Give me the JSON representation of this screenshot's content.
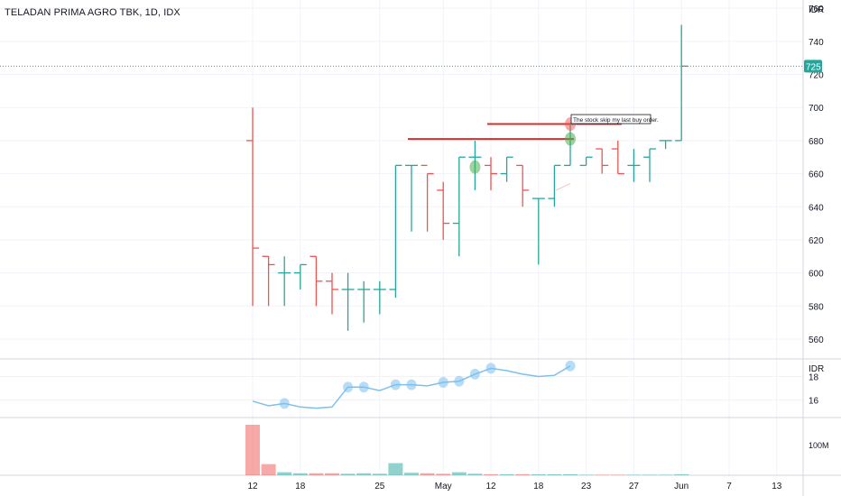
{
  "header": {
    "title": "TELADAN PRIMA AGRO TBK, 1D, IDX"
  },
  "colors": {
    "up": "#26a69a",
    "down": "#ef5350",
    "line": "#7cc0ef",
    "resistance": "#d32f2f",
    "grid": "#f0f3fa"
  },
  "chart_data": {
    "type": "ohlc",
    "currency": "IDR",
    "last_price": 725,
    "price_axis": {
      "ylim": [
        548,
        765
      ],
      "ticks": [
        560,
        580,
        600,
        620,
        640,
        660,
        680,
        700,
        720,
        740,
        760
      ]
    },
    "x_ticks": [
      {
        "label": "12",
        "i": 0
      },
      {
        "label": "18",
        "i": 3
      },
      {
        "label": "25",
        "i": 8
      },
      {
        "label": "May",
        "i": 12
      },
      {
        "label": "12",
        "i": 15
      },
      {
        "label": "18",
        "i": 18
      },
      {
        "label": "23",
        "i": 21
      },
      {
        "label": "27",
        "i": 24
      },
      {
        "label": "Jun",
        "i": 27
      },
      {
        "label": "7",
        "i": 30
      },
      {
        "label": "13",
        "i": 33
      }
    ],
    "bars": [
      {
        "o": 680,
        "h": 700,
        "l": 580,
        "c": 615,
        "v": 100
      },
      {
        "o": 610,
        "h": 610,
        "l": 580,
        "c": 605,
        "v": 22
      },
      {
        "o": 600,
        "h": 610,
        "l": 580,
        "c": 600,
        "v": 6
      },
      {
        "o": 600,
        "h": 605,
        "l": 590,
        "c": 605,
        "v": 4
      },
      {
        "o": 610,
        "h": 610,
        "l": 580,
        "c": 595,
        "v": 4
      },
      {
        "o": 595,
        "h": 600,
        "l": 575,
        "c": 590,
        "v": 4
      },
      {
        "o": 590,
        "h": 600,
        "l": 565,
        "c": 590,
        "v": 3
      },
      {
        "o": 590,
        "h": 595,
        "l": 570,
        "c": 590,
        "v": 4
      },
      {
        "o": 590,
        "h": 595,
        "l": 575,
        "c": 590,
        "v": 3
      },
      {
        "o": 590,
        "h": 665,
        "l": 585,
        "c": 665,
        "v": 24
      },
      {
        "o": 665,
        "h": 665,
        "l": 625,
        "c": 665,
        "v": 5
      },
      {
        "o": 665,
        "h": 660,
        "l": 625,
        "c": 660,
        "v": 4
      },
      {
        "o": 650,
        "h": 655,
        "l": 620,
        "c": 630,
        "v": 3
      },
      {
        "o": 630,
        "h": 670,
        "l": 610,
        "c": 670,
        "v": 6
      },
      {
        "o": 670,
        "h": 680,
        "l": 650,
        "c": 670,
        "v": 3
      },
      {
        "o": 665,
        "h": 670,
        "l": 650,
        "c": 660,
        "v": 2
      },
      {
        "o": 660,
        "h": 670,
        "l": 655,
        "c": 670,
        "v": 2
      },
      {
        "o": 665,
        "h": 665,
        "l": 640,
        "c": 650,
        "v": 2
      },
      {
        "o": 645,
        "h": 645,
        "l": 605,
        "c": 645,
        "v": 2
      },
      {
        "o": 645,
        "h": 665,
        "l": 640,
        "c": 665,
        "v": 2
      },
      {
        "o": 665,
        "h": 690,
        "l": 665,
        "c": 690,
        "v": 2
      },
      {
        "o": 665,
        "h": 670,
        "l": 665,
        "c": 670,
        "v": 1
      },
      {
        "o": 675,
        "h": 675,
        "l": 660,
        "c": 665,
        "v": 1
      },
      {
        "o": 675,
        "h": 680,
        "l": 660,
        "c": 660,
        "v": 1
      },
      {
        "o": 665,
        "h": 675,
        "l": 655,
        "c": 665,
        "v": 1
      },
      {
        "o": 670,
        "h": 675,
        "l": 655,
        "c": 675,
        "v": 1
      },
      {
        "o": 680,
        "h": 680,
        "l": 675,
        "c": 680,
        "v": 1
      },
      {
        "o": 680,
        "h": 750,
        "l": 680,
        "c": 725,
        "v": 2
      }
    ],
    "resistance_lines": [
      {
        "price": 681,
        "from_i": 10,
        "to_i": 20
      },
      {
        "price": 690,
        "from_i": 15,
        "to_i": 23
      }
    ],
    "markers": [
      {
        "i": 14,
        "price": 664,
        "color": "green"
      },
      {
        "i": 20,
        "price": 681,
        "color": "green"
      },
      {
        "i": 20,
        "price": 690,
        "color": "red"
      }
    ],
    "annotation": {
      "text": "The stock skip my last buy order.",
      "i": 20,
      "price": 693
    },
    "indicator": {
      "axis_label": "IDR",
      "ylim": [
        14.5,
        19.5
      ],
      "ticks": [
        16,
        18
      ],
      "values": [
        15.9,
        15.5,
        15.7,
        15.4,
        15.3,
        15.4,
        17.1,
        17.1,
        16.8,
        17.3,
        17.3,
        17.2,
        17.5,
        17.6,
        18.2,
        18.7,
        18.5,
        18.2,
        18.0,
        18.1,
        18.9
      ],
      "x_i": [
        0,
        1,
        2,
        3,
        4,
        5,
        6,
        7,
        8,
        9,
        10,
        11,
        12,
        13,
        14,
        15,
        16,
        17,
        18,
        19,
        20
      ],
      "highlighted_i": [
        2,
        6,
        7,
        9,
        10,
        12,
        13,
        14,
        15,
        20
      ]
    },
    "volume": {
      "tick_label": "100M"
    }
  }
}
